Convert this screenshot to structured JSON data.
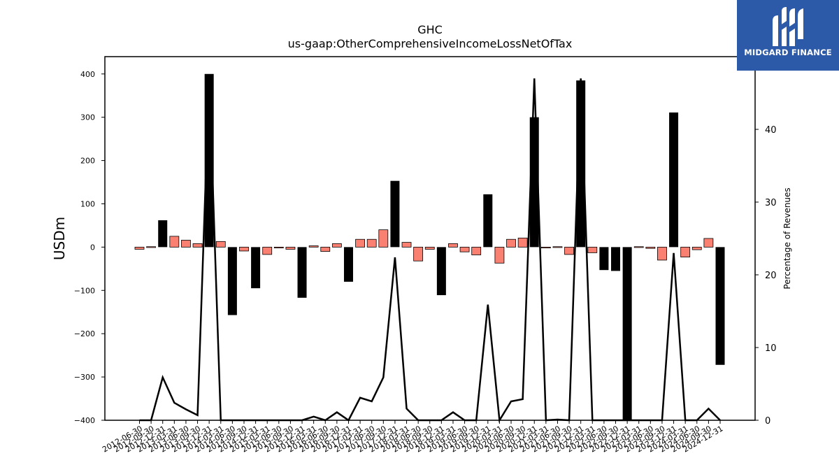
{
  "logo": {
    "text": "MIDGARD FINANCE",
    "icon": "midgard-logo-icon"
  },
  "chart_data": {
    "type": "bar",
    "title": "GHC",
    "subtitle": "us-gaap:OtherComprehensiveIncomeLossNetOfTax",
    "ylabel": "USDm",
    "y2label": "Percentage of Revenues",
    "ylim": [
      -400,
      440
    ],
    "y2lim": [
      0,
      50
    ],
    "yticks": [
      -400,
      -300,
      -200,
      -100,
      0,
      100,
      200,
      300,
      400
    ],
    "y2ticks": [
      0,
      10,
      20,
      30,
      40
    ],
    "categories": [
      "2012-06-30",
      "2012-09-30",
      "2012-12-31",
      "2013-03-31",
      "2013-06-30",
      "2013-09-30",
      "2013-12-31",
      "2014-03-31",
      "2014-06-30",
      "2014-09-30",
      "2014-12-31",
      "2015-03-31",
      "2015-06-30",
      "2015-09-30",
      "2015-12-31",
      "2016-03-31",
      "2016-06-30",
      "2016-09-30",
      "2016-12-31",
      "2017-03-31",
      "2017-06-30",
      "2017-09-30",
      "2017-12-31",
      "2018-03-31",
      "2018-06-30",
      "2018-09-30",
      "2018-12-31",
      "2019-03-31",
      "2019-06-30",
      "2019-09-30",
      "2019-12-31",
      "2020-03-31",
      "2020-06-30",
      "2020-09-30",
      "2020-12-31",
      "2021-03-31",
      "2021-06-30",
      "2021-09-30",
      "2021-12-31",
      "2022-03-31",
      "2022-06-30",
      "2022-09-30",
      "2022-12-31",
      "2023-03-31",
      "2023-06-30",
      "2023-09-30",
      "2023-12-31",
      "2024-03-31",
      "2024-06-30",
      "2024-09-30",
      "2024-12-31"
    ],
    "series": [
      {
        "type": "bar",
        "values": [
          -5,
          1,
          62,
          25,
          16,
          8,
          400,
          13,
          -157,
          -9,
          -95,
          -17,
          -2,
          -5,
          -117,
          3,
          -10,
          8,
          -80,
          18,
          18,
          40,
          153,
          11,
          -32,
          -5,
          -111,
          8,
          -11,
          -18,
          122,
          -37,
          18,
          21,
          300,
          -2,
          1,
          -17,
          385,
          -13,
          -53,
          -55,
          -400,
          1,
          -3,
          -30,
          311,
          -23,
          -6,
          20,
          -272
        ]
      },
      {
        "type": "line",
        "axis": "right",
        "values": [
          0,
          0,
          5.9,
          2.4,
          1.5,
          0.7,
          47,
          0,
          0,
          0,
          0,
          0,
          0,
          0,
          0,
          0.5,
          0,
          1.1,
          0,
          3.1,
          2.6,
          5.9,
          22.4,
          1.6,
          0,
          0,
          0,
          1.1,
          0,
          0,
          15.9,
          0,
          2.6,
          2.9,
          47,
          0,
          0.1,
          0,
          47,
          0,
          0,
          0,
          0,
          0,
          0,
          0,
          23,
          0,
          0,
          1.6,
          0
        ]
      }
    ],
    "legend": "none",
    "grid": false
  }
}
